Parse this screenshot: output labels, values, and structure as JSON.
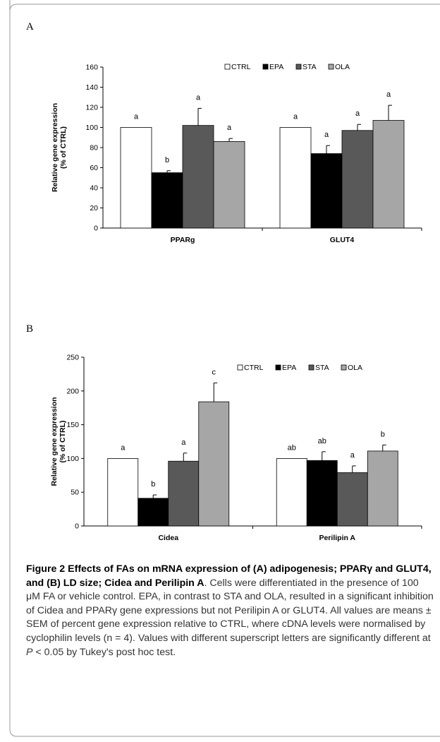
{
  "panel_labels": {
    "a": "A",
    "b": "B"
  },
  "chart_data": [
    {
      "type": "bar",
      "panel": "A",
      "ylabel_line1": "Relative gene expression",
      "ylabel_line2": "(% of CTRL)",
      "ylim": [
        0,
        160
      ],
      "yticks": [
        0,
        20,
        40,
        60,
        80,
        100,
        120,
        140,
        160
      ],
      "legend_position": "top-right",
      "categories": [
        "PPARg",
        "GLUT4"
      ],
      "series": [
        {
          "name": "CTRL",
          "color": "#ffffff",
          "values": [
            100,
            100
          ],
          "errors": [
            0,
            0
          ],
          "letters": [
            "a",
            "a"
          ]
        },
        {
          "name": "EPA",
          "color": "#000000",
          "values": [
            55,
            74
          ],
          "errors": [
            2,
            8
          ],
          "letters": [
            "b",
            "a"
          ]
        },
        {
          "name": "STA",
          "color": "#595959",
          "values": [
            102,
            97
          ],
          "errors": [
            17,
            6
          ],
          "letters": [
            "a",
            "a"
          ]
        },
        {
          "name": "OLA",
          "color": "#a6a6a6",
          "values": [
            86,
            107
          ],
          "errors": [
            3,
            15
          ],
          "letters": [
            "a",
            "a"
          ]
        }
      ]
    },
    {
      "type": "bar",
      "panel": "B",
      "ylabel_line1": "Relative gene expression",
      "ylabel_line2": "(% of CTRL)",
      "ylim": [
        0,
        250
      ],
      "yticks": [
        0,
        50,
        100,
        150,
        200,
        250
      ],
      "legend_position": "top-right",
      "categories": [
        "Cidea",
        "Perilipin A"
      ],
      "series": [
        {
          "name": "CTRL",
          "color": "#ffffff",
          "values": [
            100,
            100
          ],
          "errors": [
            0,
            0
          ],
          "letters": [
            "a",
            "ab"
          ]
        },
        {
          "name": "EPA",
          "color": "#000000",
          "values": [
            41,
            97
          ],
          "errors": [
            5,
            13
          ],
          "letters": [
            "b",
            "ab"
          ]
        },
        {
          "name": "STA",
          "color": "#595959",
          "values": [
            96,
            79
          ],
          "errors": [
            12,
            10
          ],
          "letters": [
            "a",
            "a"
          ]
        },
        {
          "name": "OLA",
          "color": "#a6a6a6",
          "values": [
            184,
            111
          ],
          "errors": [
            28,
            9
          ],
          "letters": [
            "c",
            "b"
          ]
        }
      ]
    }
  ],
  "caption": {
    "title": "Figure 2 Effects of FAs on mRNA expression of (A) adipogenesis; PPARγ and GLUT4, and (B) LD size; Cidea and Perilipin A",
    "sentence1": ". Cells were differentiated in the presence of 100 μM FA or vehicle control. EPA, in contrast to STA and OLA, resulted in a significant inhibition of Cidea and PPARγ gene expressions but not Perilipin A or GLUT4. All values are means ± SEM of percent gene expression relative to CTRL, where cDNA levels were normalised by cyclophilin levels (n = 4). Values with different superscript letters are significantly different at ",
    "p_symbol": "P",
    "sentence2": " < 0.05 by Tukey's post hoc test."
  }
}
